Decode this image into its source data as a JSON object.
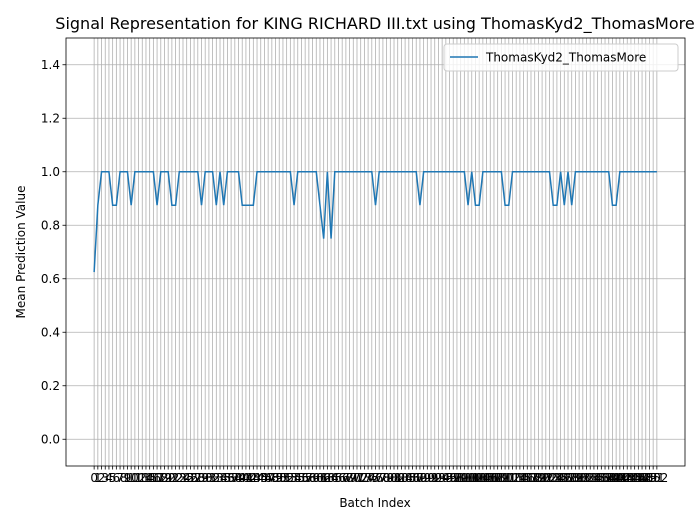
{
  "chart_data": {
    "type": "line",
    "title": "Signal Representation for KING RICHARD III.txt using ThomasKyd2_ThomasMore",
    "xlabel": "Batch Index",
    "ylabel": "Mean Prediction Value",
    "x": [
      0,
      1,
      2,
      3,
      4,
      5,
      6,
      7,
      8,
      9,
      10,
      11,
      12,
      13,
      14,
      15,
      16,
      17,
      18,
      19,
      20,
      21,
      22,
      23,
      24,
      25,
      26,
      27,
      28,
      29,
      30,
      31,
      32,
      33,
      34,
      35,
      36,
      37,
      38,
      39,
      40,
      41,
      42,
      43,
      44,
      45,
      46,
      47,
      48,
      49,
      50,
      51,
      52,
      53,
      54,
      55,
      56,
      57,
      58,
      59,
      60,
      61,
      62,
      63,
      64,
      65,
      66,
      67,
      68,
      69,
      70,
      71,
      72,
      73,
      74,
      75,
      76,
      77,
      78,
      79,
      80,
      81,
      82,
      83,
      84,
      85,
      86,
      87,
      88,
      89,
      90,
      91,
      92,
      93,
      94,
      95,
      96,
      97,
      98,
      99,
      100,
      101,
      102,
      103,
      104,
      105,
      106,
      107,
      108,
      109,
      110,
      111,
      112,
      113,
      114,
      115,
      116,
      117,
      118,
      119,
      120,
      121,
      122,
      123,
      124,
      125,
      126,
      127,
      128,
      129,
      130,
      131,
      132,
      133,
      134,
      135,
      136,
      137,
      138,
      139,
      140,
      141,
      142,
      143,
      144,
      145,
      146,
      147,
      148,
      149,
      150,
      151,
      152
    ],
    "series": [
      {
        "name": "ThomasKyd2_ThomasMore",
        "color": "#1f77b4",
        "values": [
          0.625,
          0.875,
          1,
          1,
          1,
          0.875,
          0.875,
          1,
          1,
          1,
          0.875,
          1,
          1,
          1,
          1,
          1,
          1,
          0.875,
          1,
          1,
          1,
          0.875,
          0.875,
          1,
          1,
          1,
          1,
          1,
          1,
          0.875,
          1,
          1,
          1,
          0.875,
          1,
          0.875,
          1,
          1,
          1,
          1,
          0.875,
          0.875,
          0.875,
          0.875,
          1,
          1,
          1,
          1,
          1,
          1,
          1,
          1,
          1,
          1,
          0.875,
          1,
          1,
          1,
          1,
          1,
          1,
          0.875,
          0.75,
          1,
          0.75,
          1,
          1,
          1,
          1,
          1,
          1,
          1,
          1,
          1,
          1,
          1,
          0.875,
          1,
          1,
          1,
          1,
          1,
          1,
          1,
          1,
          1,
          1,
          1,
          0.875,
          1,
          1,
          1,
          1,
          1,
          1,
          1,
          1,
          1,
          1,
          1,
          1,
          0.875,
          1,
          0.875,
          0.875,
          1,
          1,
          1,
          1,
          1,
          1,
          0.875,
          0.875,
          1,
          1,
          1,
          1,
          1,
          1,
          1,
          1,
          1,
          1,
          1,
          0.875,
          0.875,
          1,
          0.875,
          1,
          0.875,
          1,
          1,
          1,
          1,
          1,
          1,
          1,
          1,
          1,
          1,
          0.875,
          0.875,
          1,
          1,
          1,
          1,
          1,
          1,
          1,
          1,
          1,
          1,
          1
        ]
      }
    ],
    "xlim": [
      -7.6,
      159.6
    ],
    "ylim": [
      -0.1,
      1.5
    ],
    "xticks": [
      0,
      1,
      2,
      3,
      4,
      5,
      6,
      7,
      8,
      9,
      10,
      11,
      12,
      13,
      14,
      15,
      16,
      17,
      18,
      19,
      20,
      21,
      22,
      23,
      24,
      25,
      26,
      27,
      28,
      29,
      30,
      31,
      32,
      33,
      34,
      35,
      36,
      37,
      38,
      39,
      40,
      41,
      42,
      43,
      44,
      45,
      46,
      47,
      48,
      49,
      50,
      51,
      52,
      53,
      54,
      55,
      56,
      57,
      58,
      59,
      60,
      61,
      62,
      63,
      64,
      65,
      66,
      67,
      68,
      69,
      70,
      71,
      72,
      73,
      74,
      75,
      76,
      77,
      78,
      79,
      80,
      81,
      82,
      83,
      84,
      85,
      86,
      87,
      88,
      89,
      90,
      91,
      92,
      93,
      94,
      95,
      96,
      97,
      98,
      99,
      100,
      101,
      102,
      103,
      104,
      105,
      106,
      107,
      108,
      109,
      110,
      111,
      112,
      113,
      114,
      115,
      116,
      117,
      118,
      119,
      120,
      121,
      122,
      123,
      124,
      125,
      126,
      127,
      128,
      129,
      130,
      131,
      132,
      133,
      134,
      135,
      136,
      137,
      138,
      139,
      140,
      141,
      142,
      143,
      144,
      145,
      146,
      147,
      148,
      149,
      150,
      151,
      152
    ],
    "yticks": [
      {
        "value": 0,
        "label": "0.0"
      },
      0.2,
      0.4,
      0.6,
      0.8,
      {
        "value": 1,
        "label": "1.0"
      },
      1.2,
      1.4
    ],
    "grid": true,
    "legend": "upper right"
  }
}
